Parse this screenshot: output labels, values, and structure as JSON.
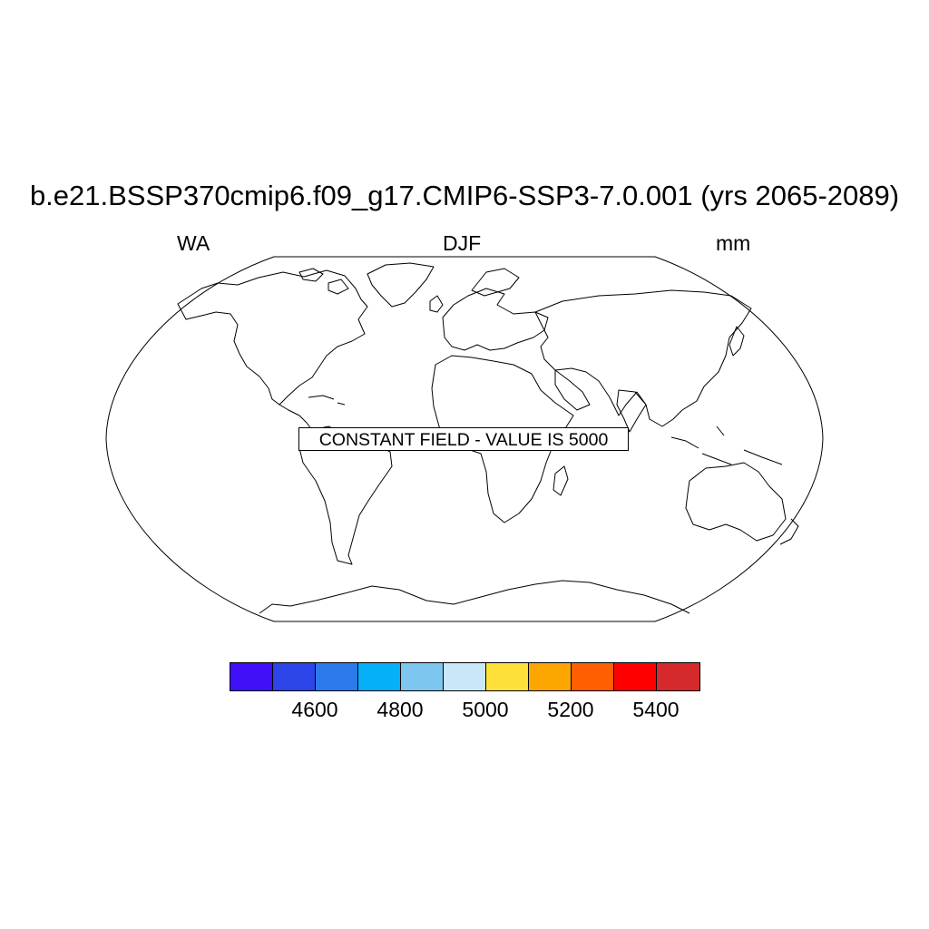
{
  "title": "b.e21.BSSP370cmip6.f09_g17.CMIP6-SSP3-7.0.001 (yrs 2065-2089)",
  "subtitle_left": "WA",
  "subtitle_center": "DJF",
  "subtitle_right": "mm",
  "annotation": "CONSTANT FIELD - VALUE IS 5000",
  "colorbar": {
    "colors": [
      "#4010F8",
      "#2B45E8",
      "#2C7AEC",
      "#05B0F8",
      "#7DC6EF",
      "#C8E7F8",
      "#FDE03A",
      "#FDA600",
      "#FF5F00",
      "#FF0000",
      "#D5292B"
    ],
    "tick_labels": [
      "4600",
      "4800",
      "5000",
      "5200",
      "5400"
    ]
  }
}
